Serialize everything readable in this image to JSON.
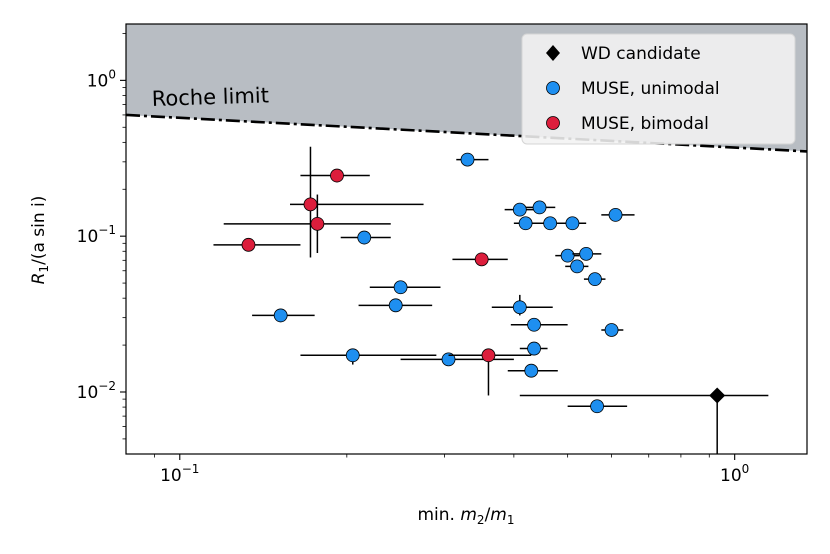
{
  "chart_data": {
    "type": "scatter",
    "title": "",
    "xlabel_prefix": "min. ",
    "xlabel_math": {
      "num_base": "m",
      "num_sub": "2",
      "sep": "/",
      "den_base": "m",
      "den_sub": "1"
    },
    "ylabel_math": {
      "base": "R",
      "sub": "1",
      "rest": "/(a sin i)"
    },
    "xscale": "log",
    "yscale": "log",
    "xlim": [
      0.08,
      1.35
    ],
    "ylim": [
      0.004,
      2.3
    ],
    "x_ticks": [
      {
        "value": 0.1,
        "base": "10",
        "exp": "−1"
      },
      {
        "value": 1.0,
        "base": "10",
        "exp": "0"
      }
    ],
    "y_ticks": [
      {
        "value": 0.01,
        "base": "10",
        "exp": "−2"
      },
      {
        "value": 0.1,
        "base": "10",
        "exp": "−1"
      },
      {
        "value": 1.0,
        "base": "10",
        "exp": "0"
      }
    ],
    "roche_limit": {
      "label": "Roche limit",
      "x": [
        0.08,
        1.35
      ],
      "y": [
        0.6,
        0.35
      ],
      "fill_color": "#b8bdc3"
    },
    "legend": {
      "position": "upper right",
      "entries": [
        {
          "label": "WD candidate",
          "marker": "diamond",
          "color": "#000000"
        },
        {
          "label": "MUSE, unimodal",
          "marker": "circle",
          "color": "#1e8ff0"
        },
        {
          "label": "MUSE, bimodal",
          "marker": "circle",
          "color": "#dc1e3c"
        }
      ]
    },
    "series": [
      {
        "name": "WD candidate",
        "marker": "diamond",
        "color": "#000000",
        "points": [
          {
            "x": 0.93,
            "y": 0.0095,
            "xerr": [
              0.41,
              1.15
            ],
            "yerr": [
              0.004,
              0.0095
            ]
          }
        ]
      },
      {
        "name": "MUSE, unimodal",
        "marker": "circle",
        "color": "#1e8ff0",
        "points": [
          {
            "x": 0.33,
            "y": 0.31,
            "xerr": [
              0.315,
              0.36
            ]
          },
          {
            "x": 0.41,
            "y": 0.148,
            "xerr": [
              0.385,
              0.44
            ]
          },
          {
            "x": 0.445,
            "y": 0.153,
            "xerr": [
              0.42,
              0.475
            ]
          },
          {
            "x": 0.42,
            "y": 0.121,
            "xerr": [
              0.4,
              0.445
            ]
          },
          {
            "x": 0.465,
            "y": 0.121,
            "xerr": [
              0.44,
              0.495
            ]
          },
          {
            "x": 0.51,
            "y": 0.121,
            "xerr": [
              0.485,
              0.54
            ]
          },
          {
            "x": 0.61,
            "y": 0.137,
            "xerr": [
              0.575,
              0.66
            ]
          },
          {
            "x": 0.5,
            "y": 0.075,
            "xerr": [
              0.475,
              0.525
            ]
          },
          {
            "x": 0.54,
            "y": 0.077,
            "xerr": [
              0.51,
              0.575
            ]
          },
          {
            "x": 0.52,
            "y": 0.064,
            "xerr": [
              0.495,
              0.545
            ]
          },
          {
            "x": 0.56,
            "y": 0.053,
            "xerr": [
              0.535,
              0.585
            ]
          },
          {
            "x": 0.215,
            "y": 0.098,
            "xerr": [
              0.195,
              0.24
            ]
          },
          {
            "x": 0.25,
            "y": 0.047,
            "xerr": [
              0.22,
              0.295
            ]
          },
          {
            "x": 0.245,
            "y": 0.036,
            "xerr": [
              0.21,
              0.285
            ]
          },
          {
            "x": 0.152,
            "y": 0.031,
            "xerr": [
              0.135,
              0.175
            ]
          },
          {
            "x": 0.41,
            "y": 0.035,
            "xerr": [
              0.365,
              0.47
            ],
            "yerr": [
              0.031,
              0.042
            ]
          },
          {
            "x": 0.435,
            "y": 0.027,
            "xerr": [
              0.395,
              0.5
            ]
          },
          {
            "x": 0.6,
            "y": 0.025,
            "xerr": [
              0.575,
              0.63
            ]
          },
          {
            "x": 0.435,
            "y": 0.019,
            "xerr": [
              0.41,
              0.46
            ]
          },
          {
            "x": 0.205,
            "y": 0.0172,
            "xerr": [
              0.165,
              0.29
            ],
            "yerr": [
              0.015,
              0.019
            ]
          },
          {
            "x": 0.305,
            "y": 0.0162,
            "xerr": [
              0.25,
              0.4
            ]
          },
          {
            "x": 0.43,
            "y": 0.0137,
            "xerr": [
              0.39,
              0.48
            ]
          },
          {
            "x": 0.565,
            "y": 0.0081,
            "xerr": [
              0.5,
              0.64
            ]
          }
        ]
      },
      {
        "name": "MUSE, bimodal",
        "marker": "circle",
        "color": "#dc1e3c",
        "points": [
          {
            "x": 0.192,
            "y": 0.245,
            "xerr": [
              0.165,
              0.22
            ]
          },
          {
            "x": 0.172,
            "y": 0.16,
            "xerr": [
              0.158,
              0.275
            ],
            "yerr": [
              0.073,
              0.375
            ]
          },
          {
            "x": 0.177,
            "y": 0.12,
            "xerr": [
              0.12,
              0.24
            ],
            "yerr": [
              0.078,
              0.185
            ]
          },
          {
            "x": 0.133,
            "y": 0.088,
            "xerr": [
              0.115,
              0.165
            ]
          },
          {
            "x": 0.35,
            "y": 0.071,
            "xerr": [
              0.31,
              0.39
            ]
          },
          {
            "x": 0.36,
            "y": 0.0172,
            "xerr": [
              0.305,
              0.43
            ],
            "yerr": [
              0.0095,
              0.019
            ]
          }
        ]
      }
    ]
  }
}
